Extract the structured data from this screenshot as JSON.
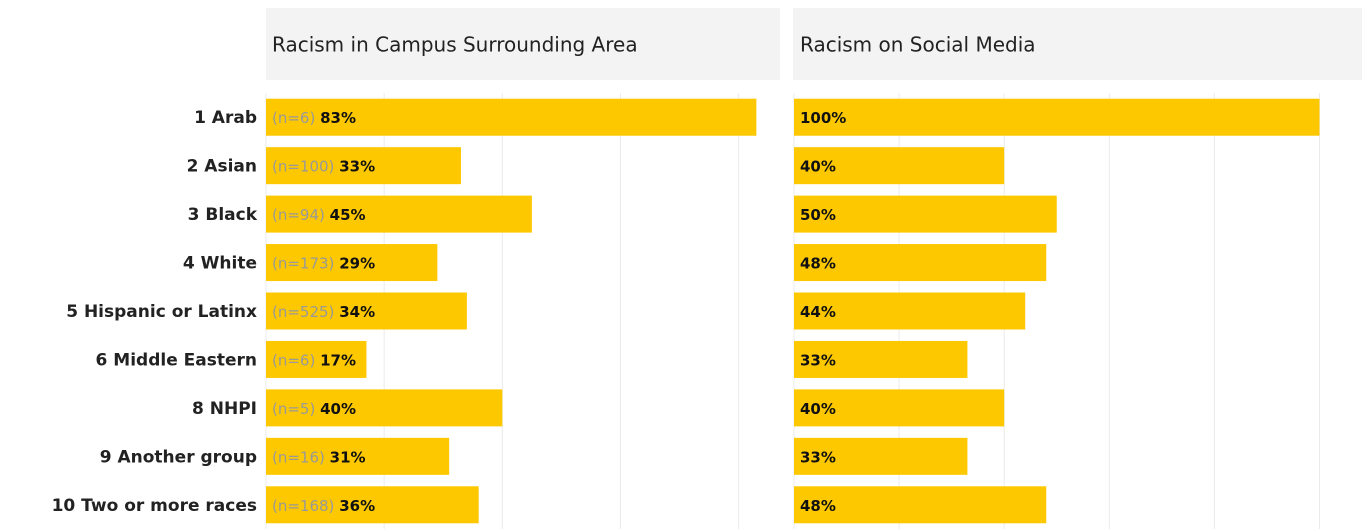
{
  "chart_data": [
    {
      "type": "bar",
      "title": "Racism in Campus Surrounding Area",
      "categories": [
        "1 Arab",
        "2 Asian",
        "3 Black",
        "4 White",
        "5 Hispanic or Latinx",
        "6 Middle Eastern",
        "8 NHPI",
        "9 Another group",
        "10 Two or more races"
      ],
      "n_labels": [
        "(n=6)",
        "(n=100)",
        "(n=94)",
        "(n=173)",
        "(n=525)",
        "(n=6)",
        "(n=5)",
        "(n=16)",
        "(n=168)"
      ],
      "values": [
        83,
        33,
        45,
        29,
        34,
        17,
        40,
        31,
        36
      ],
      "value_labels": [
        "83%",
        "33%",
        "45%",
        "29%",
        "34%",
        "17%",
        "40%",
        "31%",
        "36%"
      ],
      "color": "#fdc800",
      "xlim": [
        0,
        87
      ],
      "xticks": [
        0,
        20,
        40,
        60,
        80
      ],
      "grid": true
    },
    {
      "type": "bar",
      "title": "Racism on Social Media",
      "values": [
        100,
        40,
        50,
        48,
        44,
        33,
        40,
        33,
        48
      ],
      "value_labels": [
        "100%",
        "40%",
        "50%",
        "48%",
        "44%",
        "33%",
        "40%",
        "33%",
        "48%"
      ],
      "color": "#fdc800",
      "xlim": [
        0,
        102
      ],
      "xticks": [
        0,
        20,
        40,
        60,
        80,
        100
      ],
      "grid": true
    }
  ]
}
